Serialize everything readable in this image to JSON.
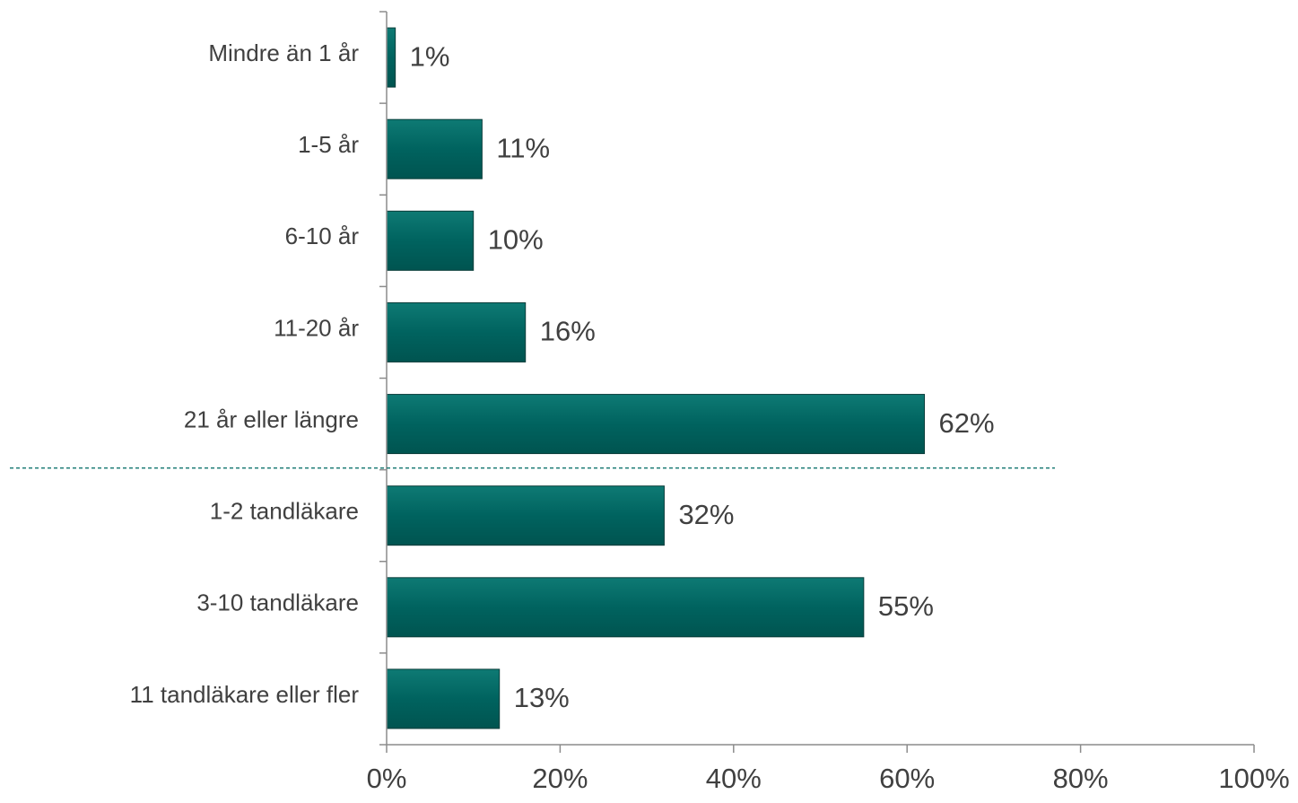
{
  "chart_data": {
    "type": "bar",
    "orientation": "horizontal",
    "categories": [
      "Mindre än 1 år",
      "1-5 år",
      "6-10 år",
      "11-20 år",
      "21 år eller längre",
      "1-2 tandläkare",
      "3-10 tandläkare",
      "11 tandläkare eller fler"
    ],
    "values": [
      1,
      11,
      10,
      16,
      62,
      32,
      55,
      13
    ],
    "value_labels": [
      "1%",
      "11%",
      "10%",
      "16%",
      "62%",
      "32%",
      "55%",
      "13%"
    ],
    "xlim": [
      0,
      100
    ],
    "x_ticks": [
      0,
      20,
      40,
      60,
      80,
      100
    ],
    "x_tick_labels": [
      "0%",
      "20%",
      "40%",
      "60%",
      "80%",
      "100%"
    ],
    "separator_after_category": "21 år eller längre",
    "grid": false,
    "legend": "none",
    "colors": {
      "bar": "#00635f",
      "bar_edge": "#0a3d3a",
      "separator": "#1a7a74",
      "axis": "#8c8c8c",
      "text": "#404040"
    }
  }
}
